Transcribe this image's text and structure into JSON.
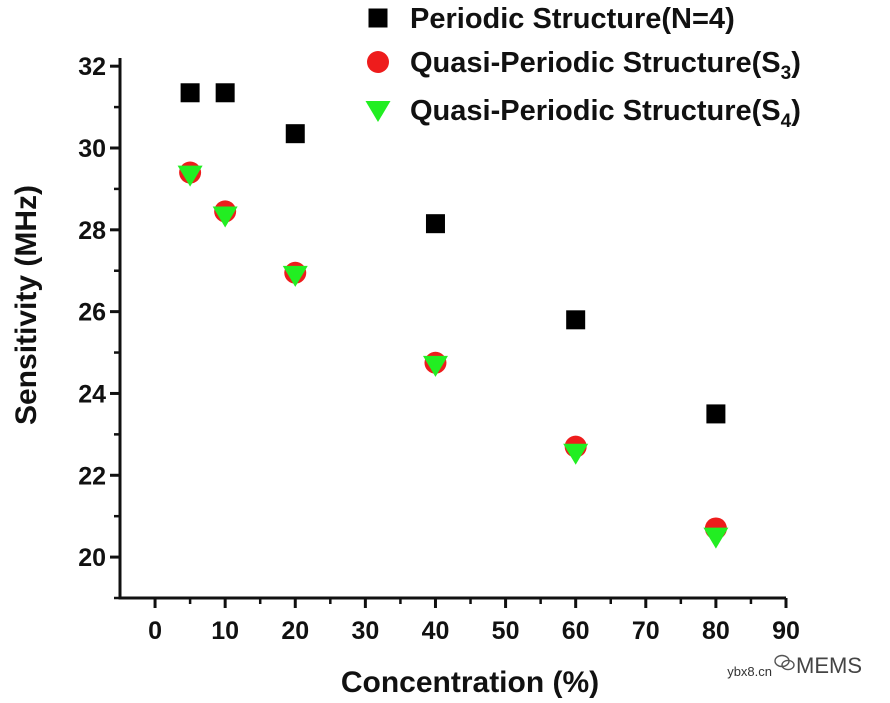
{
  "chart_data": {
    "type": "scatter",
    "title": "",
    "xlabel": "Concentration (%)",
    "ylabel": "Sensitivity (MHz)",
    "xlim": [
      -5,
      90
    ],
    "ylim": [
      19,
      32.2
    ],
    "x_ticks": [
      0,
      10,
      20,
      30,
      40,
      50,
      60,
      70,
      80,
      90
    ],
    "y_ticks": [
      20,
      22,
      24,
      26,
      28,
      30,
      32
    ],
    "legend_position": "top-right",
    "series": [
      {
        "name": "Periodic Structure(N=4)",
        "label_main": "Periodic Structure(N=4)",
        "label_sub": "",
        "label_close": "",
        "marker": "square",
        "color": "#000000",
        "x": [
          5,
          10,
          20,
          40,
          60,
          80
        ],
        "y": [
          31.35,
          31.35,
          30.35,
          28.15,
          25.8,
          23.5
        ]
      },
      {
        "name": "Quasi-Periodic Structure(S3)",
        "label_main": "Quasi-Periodic Structure(S",
        "label_sub": "3",
        "label_close": ")",
        "marker": "circle",
        "color": "#ee1c1c",
        "x": [
          5,
          10,
          20,
          40,
          60,
          80
        ],
        "y": [
          29.4,
          28.45,
          26.95,
          24.75,
          22.7,
          20.7
        ]
      },
      {
        "name": "Quasi-Periodic Structure(S4)",
        "label_main": "Quasi-Periodic Structure(S",
        "label_sub": "4",
        "label_close": ")",
        "marker": "triangle-down",
        "color": "#22ee22",
        "x": [
          5,
          10,
          20,
          40,
          60,
          80
        ],
        "y": [
          29.35,
          28.35,
          26.9,
          24.7,
          22.55,
          20.5
        ]
      }
    ]
  },
  "watermark": {
    "site": "ybx8.cn",
    "brand": "MEMS",
    "icon": "wechat-icon"
  }
}
